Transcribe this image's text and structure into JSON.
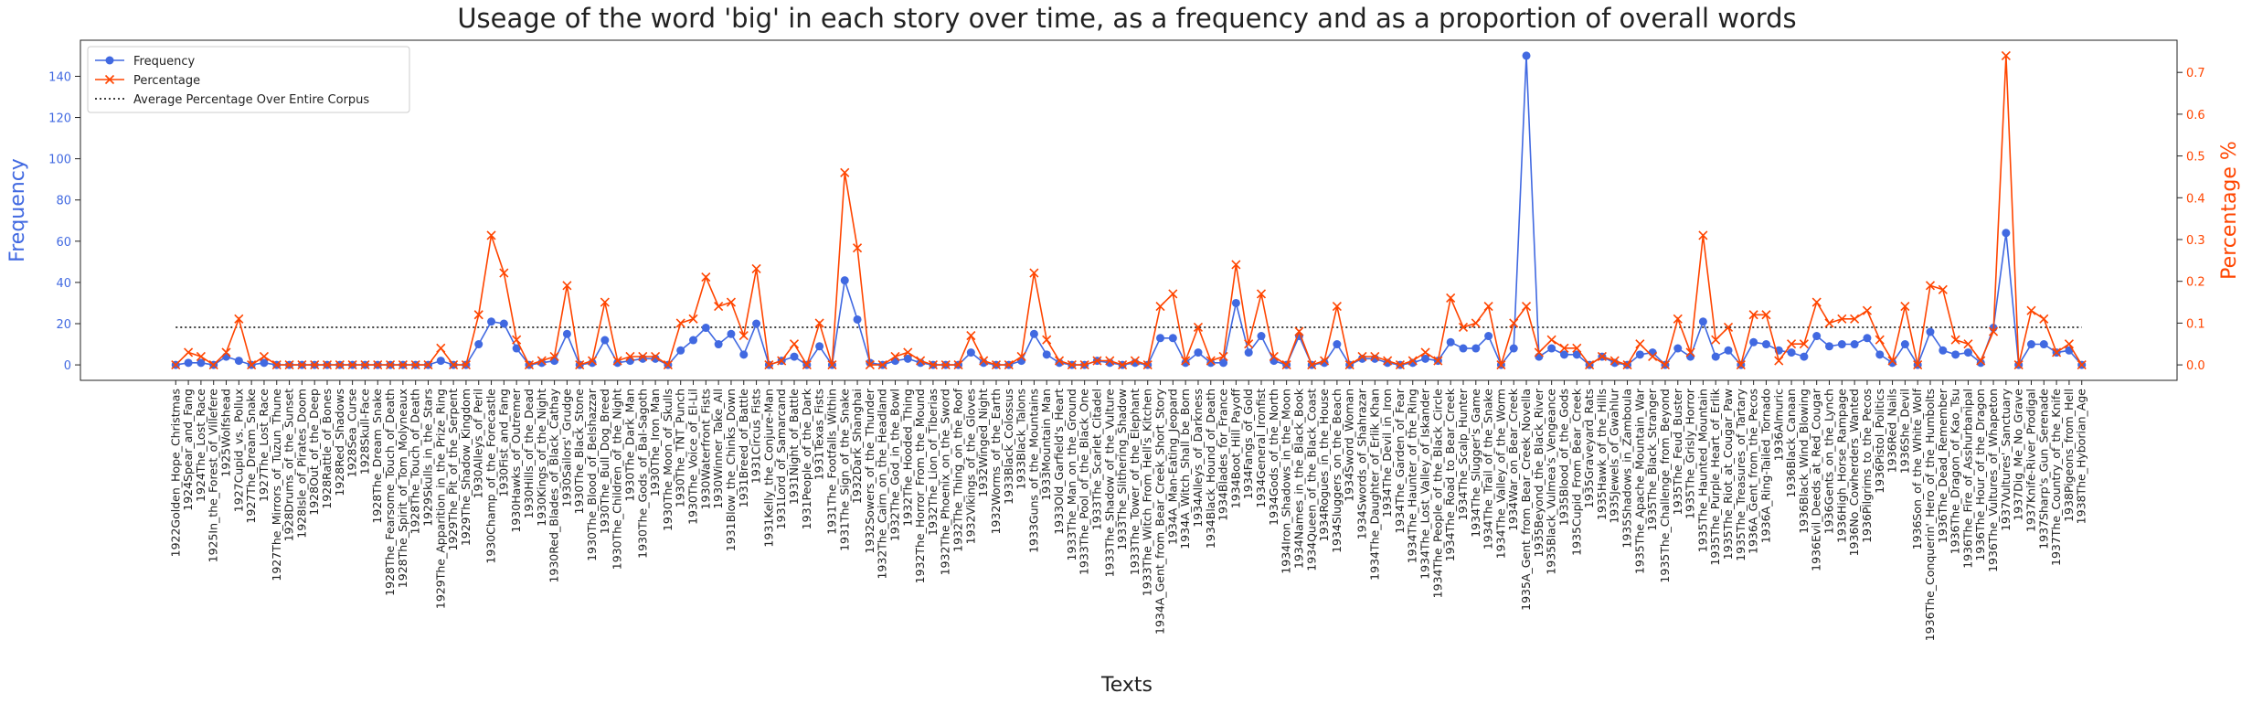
{
  "chart_data": {
    "type": "line",
    "title": "Useage of the word 'big' in each story over time, as a frequency and as a proportion of overall words",
    "xlabel": "Texts",
    "ylabel": "Frequency",
    "y2label": "Percentage %",
    "legend": "upper left",
    "categories": [
      "1922Golden_Hope_Christmas",
      "1924Spear_and_Fang",
      "1924The_Lost_Race",
      "1925In_the_Forest_of_Villefere",
      "1925Wolfshead",
      "1927Cupid_vs._Pollux",
      "1927The_Dream_Snake",
      "1927The_Lost_Race",
      "1927The_Mirrors_of_Tuzun_Thune",
      "1928Drums_of_the_Sunset",
      "1928Isle_of_Pirates_Doom",
      "1928Out_of_the_Deep",
      "1928Rattle_of_Bones",
      "1928Red_Shadows",
      "1928Sea_Curse",
      "1928Skull-Face",
      "1928The_Dream_Snake",
      "1928The_Fearsome_Touch_of_Death",
      "1928The_Spirit_of_Tom_Molyneaux",
      "1928The_Touch_of_Death",
      "1929Skulls_in_the_Stars",
      "1929The_Apparition_in_the_Prize_Ring",
      "1929The_Pit_of_the_Serpent",
      "1929The_Shadow_Kingdom",
      "1930Alleys_of_Peril",
      "1930Champ_of_the_Forecastle",
      "1930Fist_and_Fang",
      "1930Hawks_of_Outremer",
      "1930Hills_of_the_Dead",
      "1930Kings_of_the_Night",
      "1930Red_Blades_of_Black_Cathay",
      "1930Sailors'_Grudge",
      "1930The_Black_Stone",
      "1930The_Blood_of_Belshazzar",
      "1930The_Bull_Dog_Breed",
      "1930The_Children_of_the_Night",
      "1930The_Dark_Man",
      "1930The_Gods_of_Bal-Sagoth",
      "1930The_Iron_Man",
      "1930The_Moon_of_Skulls",
      "1930The_TNT_Punch",
      "1930The_Voice_of_El-Lil",
      "1930Waterfront_Fists",
      "1930Winner_Take_All",
      "1931Blow_the_Chinks_Down",
      "1931Breed_of_Battle",
      "1931Circus_Fists",
      "1931Kelly_the_Conjure-Man",
      "1931Lord_of_Samarcand",
      "1931Night_of_Battle",
      "1931People_of_the_Dark",
      "1931Texas_Fists",
      "1931The_Footfalls_Within",
      "1931The_Sign_of_the_Snake",
      "1932Dark_Shanghai",
      "1932Sowers_of_the_Thunder",
      "1932The_Cairn_on_the_Headland",
      "1932The_God_in_the_Bowl",
      "1932The_Hooded_Thing",
      "1932The_Horror_From_the_Mound",
      "1932The_Lion_of_Tiberias",
      "1932The_Phoenix_on_the_Sword",
      "1932The_Thing_on_the_Roof",
      "1932Vikings_of_the_Gloves",
      "1932Winged_Night",
      "1932Worms_of_the_Earth",
      "1933Black_Colossus",
      "1933Black_Talons",
      "1933Guns_of_the_Mountains",
      "1933Mountain_Man",
      "1933Old_Garfield's_Heart",
      "1933The_Man_on_the_Ground",
      "1933The_Pool_of_the_Black_One",
      "1933The_Scarlet_Citadel",
      "1933The_Shadow_of_the_Vulture",
      "1933The_Slithering_Shadow",
      "1933The_Tower_of_the_Elephant",
      "1933The_Witch_From_Hell's_Kitchen",
      "1934A_Gent_from_Bear_Creek_Short_Story",
      "1934A_Man-Eating_Jeopard",
      "1934A_Witch_Shall_be_Born",
      "1934Alleys_of_Darkness",
      "1934Black_Hound_of_Death",
      "1934Blades_for_France",
      "1934Boot_Hill_Payoff",
      "1934Fangs_of_Gold",
      "1934General_Ironfist",
      "1934Gods_of_the_North",
      "1934Iron_Shadows_in_the_Moon",
      "1934Names_in_the_Black_Book",
      "1934Queen_of_the_Black_Coast",
      "1934Rogues_in_the_House",
      "1934Sluggers_on_the_Beach",
      "1934Sword_Woman",
      "1934Swords_of_Shahrazar",
      "1934The_Daughter_of_Erlik_Khan",
      "1934The_Devil_in_Iron",
      "1934The_Garden_of_Fear",
      "1934The_Haunter_of_the_Ring",
      "1934The_Lost_Valley_of_Iskander",
      "1934The_People_of_the_Black_Circle",
      "1934The_Road_to_Bear_Creek",
      "1934The_Scalp_Hunter",
      "1934The_Slugger's_Game",
      "1934The_Trail_of_the_Snake",
      "1934The_Valley_of_the_Worm",
      "1934War_on_Bear_Creek",
      "1935A_Gent_from_Bear_Creek_Novella",
      "1935Beyond_the_Black_River",
      "1935Black_Vulmea's_Vengeance",
      "1935Blood_of_the_Gods",
      "1935Cupid_From_Bear_Creek",
      "1935Graveyard_Rats",
      "1935Hawk_of_the_Hills",
      "1935Jewels_of_Gwahlur",
      "1935Shadows_in_Zamboula",
      "1935The_Apache_Mountain_War",
      "1935The_Black_Stranger",
      "1935The_Challenge_from_Beyond",
      "1935The_Feud_Buster",
      "1935The_Grisly_Horror",
      "1935The_Haunted_Mountain",
      "1935The_Purple_Heart_of_Erlik",
      "1935The_Riot_at_Cougar_Paw",
      "1935The_Treasures_of_Tartary",
      "1936A_Gent_from_the_Pecos",
      "1936A_Ring-Tailed_Tornado",
      "1936Almuric",
      "1936Black_Canaan",
      "1936Black_Wind_Blowing",
      "1936Evil_Deeds_at_Red_Cougar",
      "1936Gents_on_the_Lynch",
      "1936High_Horse_Rampage",
      "1936No_Cowherders_Wanted",
      "1936Pilgrims_to_the_Pecos",
      "1936Pistol_Politics",
      "1936Red_Nails",
      "1936She_Devil",
      "1936Son_of_the_White_Wolf",
      "1936The_Conquerin'_Hero_of_the_Humbolts",
      "1936The_Dead_Remember",
      "1936The_Dragon_of_Kao_Tsu",
      "1936The_Fire_of_Asshurbanipal",
      "1936The_Hour_of_the_Dragon",
      "1936The_Vultures_of_Whapeton",
      "1937Vultures'_Sanctuary",
      "1937Dig_Me_No_Grave",
      "1937Knife-River_Prodigal",
      "1937Sharp's_Gun_Serenade",
      "1937The_Country_of_the_Knife",
      "1938Pigeons_from_Hell",
      "1938The_Hyborian_Age"
    ],
    "series": [
      {
        "name": "Frequency",
        "color": "#4169e1",
        "marker": "o",
        "axis": "y",
        "values": [
          0,
          1,
          1,
          0,
          4,
          2,
          0,
          1,
          0,
          0,
          0,
          0,
          0,
          0,
          0,
          0,
          0,
          0,
          0,
          0,
          0,
          2,
          0,
          0,
          10,
          21,
          20,
          8,
          0,
          1,
          2,
          15,
          0,
          1,
          12,
          1,
          2,
          3,
          3,
          0,
          7,
          12,
          18,
          10,
          15,
          5,
          20,
          0,
          2,
          4,
          0,
          9,
          0,
          41,
          22,
          1,
          0,
          2,
          3,
          1,
          0,
          0,
          0,
          6,
          1,
          0,
          0,
          2,
          15,
          5,
          1,
          0,
          0,
          2,
          1,
          0,
          1,
          0,
          13,
          13,
          1,
          6,
          1,
          1,
          30,
          6,
          14,
          2,
          0,
          14,
          0,
          1,
          10,
          0,
          3,
          3,
          1,
          0,
          1,
          3,
          2,
          11,
          8,
          8,
          14,
          0,
          8,
          150,
          4,
          8,
          5,
          5,
          0,
          4,
          1,
          0,
          5,
          6,
          0,
          8,
          4,
          21,
          4,
          7,
          0,
          11,
          10,
          7,
          6,
          4,
          14,
          9,
          10,
          10,
          13,
          5,
          1,
          10,
          0,
          16,
          7,
          5,
          6,
          1,
          18,
          64,
          0,
          10,
          10,
          6,
          7,
          0
        ]
      },
      {
        "name": "Percentage",
        "color": "#ff4500",
        "marker": "x",
        "axis": "y2",
        "values": [
          0,
          0.03,
          0.02,
          0,
          0.03,
          0.11,
          0,
          0.02,
          0,
          0,
          0,
          0,
          0,
          0,
          0,
          0,
          0,
          0,
          0,
          0,
          0,
          0.04,
          0,
          0,
          0.12,
          0.31,
          0.22,
          0.06,
          0,
          0.01,
          0.02,
          0.19,
          0,
          0.01,
          0.15,
          0.01,
          0.02,
          0.02,
          0.02,
          0,
          0.1,
          0.11,
          0.21,
          0.14,
          0.15,
          0.07,
          0.23,
          0,
          0.01,
          0.05,
          0,
          0.1,
          0,
          0.46,
          0.28,
          0,
          0,
          0.02,
          0.03,
          0.01,
          0,
          0,
          0,
          0.07,
          0.01,
          0,
          0,
          0.02,
          0.22,
          0.06,
          0.01,
          0,
          0,
          0.01,
          0.01,
          0,
          0.01,
          0,
          0.14,
          0.17,
          0.01,
          0.09,
          0.01,
          0.02,
          0.24,
          0.05,
          0.17,
          0.02,
          0,
          0.08,
          0,
          0.01,
          0.14,
          0,
          0.02,
          0.02,
          0.01,
          0,
          0.01,
          0.03,
          0.01,
          0.16,
          0.09,
          0.1,
          0.14,
          0,
          0.1,
          0.14,
          0.03,
          0.06,
          0.04,
          0.04,
          0,
          0.02,
          0.01,
          0,
          0.05,
          0.02,
          0,
          0.11,
          0.03,
          0.31,
          0.06,
          0.09,
          0,
          0.12,
          0.12,
          0.01,
          0.05,
          0.05,
          0.15,
          0.1,
          0.11,
          0.11,
          0.13,
          0.06,
          0.01,
          0.14,
          0,
          0.19,
          0.18,
          0.06,
          0.05,
          0.01,
          0.08,
          0.74,
          0,
          0.13,
          0.11,
          0.03,
          0.05,
          0
        ]
      }
    ],
    "average": {
      "name": "Average Percentage Over Entire Corpus",
      "value": 0.09,
      "color": "#000000",
      "axis": "y2"
    },
    "ylim": [
      -7.5,
      157.5
    ],
    "yticks": [
      0,
      20,
      40,
      60,
      80,
      100,
      120,
      140
    ],
    "y2lim": [
      -0.037,
      0.777
    ],
    "y2ticks": [
      {
        "value": 0,
        "label": "0.0"
      },
      0.1,
      0.2,
      0.3,
      0.4,
      0.5,
      0.6,
      0.7
    ]
  }
}
